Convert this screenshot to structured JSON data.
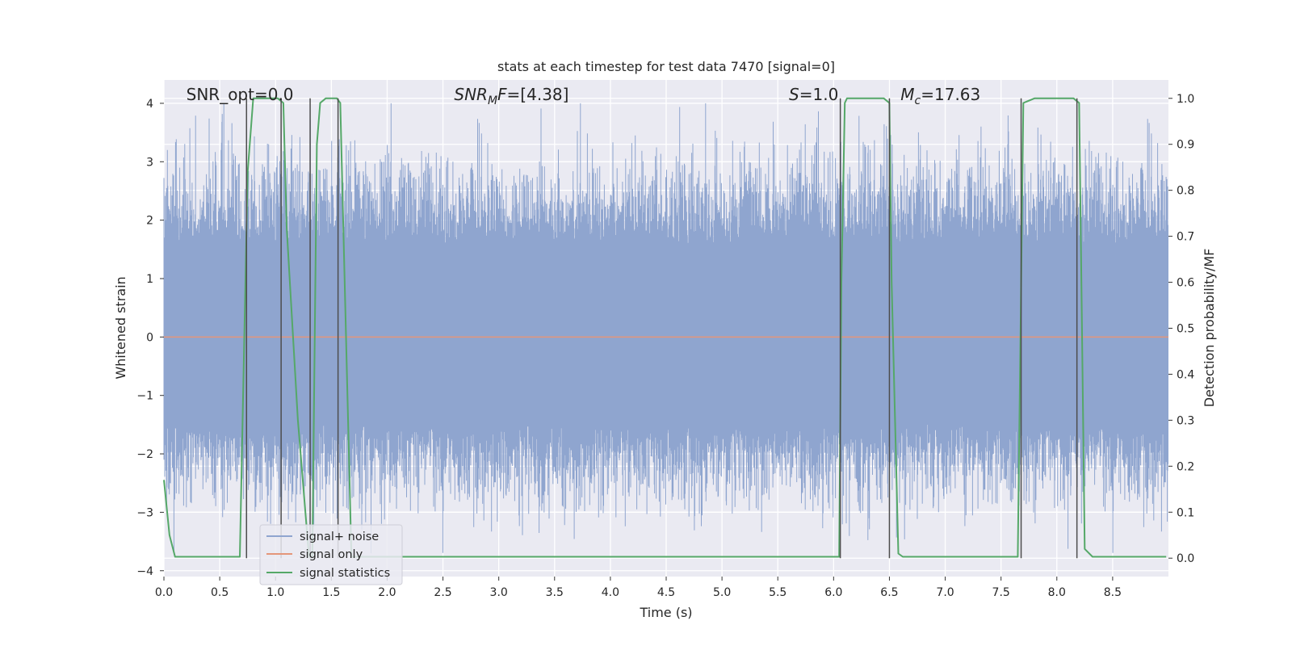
{
  "chart_data": {
    "type": "line",
    "title": "stats at each timestep for test data 7470 [signal=0]",
    "xlabel": "Time (s)",
    "ylabel": "Whitened strain",
    "y2label": "Detection probability/MF",
    "xlim": [
      0.0,
      9.0
    ],
    "ylim": [
      -4.1,
      4.4
    ],
    "y2lim": [
      -0.04,
      1.04
    ],
    "xticks": [
      "0.0",
      "0.5",
      "1.0",
      "1.5",
      "2.0",
      "2.5",
      "3.0",
      "3.5",
      "4.0",
      "4.5",
      "5.0",
      "5.5",
      "6.0",
      "6.5",
      "7.0",
      "7.5",
      "8.0",
      "8.5"
    ],
    "yticks": [
      "4",
      "3",
      "2",
      "1",
      "0",
      "−1",
      "−2",
      "−3",
      "−4"
    ],
    "y2ticks": [
      "1.0",
      "0.9",
      "0.8",
      "0.7",
      "0.6",
      "0.5",
      "0.4",
      "0.3",
      "0.2",
      "0.1",
      "0.0"
    ],
    "grid": true,
    "legend_position": "lower-left",
    "annotations": [
      {
        "parts": [
          {
            "text": "SNR_opt=0.0",
            "italic": false
          }
        ],
        "x": 0.2
      },
      {
        "parts": [
          {
            "text": "SNR",
            "italic": true
          },
          {
            "text": "M",
            "italic": true,
            "sub": true
          },
          {
            "text": "F",
            "italic": true
          },
          {
            "text": "=[4.38]",
            "italic": false
          }
        ],
        "x": 2.6
      },
      {
        "parts": [
          {
            "text": "S",
            "italic": true
          },
          {
            "text": "=1.0",
            "italic": false
          }
        ],
        "x": 5.6
      },
      {
        "parts": [
          {
            "text": "M",
            "italic": true
          },
          {
            "text": "c",
            "italic": true,
            "sub": true
          },
          {
            "text": "=17.63",
            "italic": false
          }
        ],
        "x": 6.6
      }
    ],
    "series": [
      {
        "name": "signal+ noise",
        "kind": "noise",
        "color": "#8fa5cf",
        "amplitude_typical": [
          -1.4,
          1.5
        ],
        "amplitude_extreme": [
          -3.7,
          4.0
        ]
      },
      {
        "name": "signal only",
        "kind": "line",
        "color": "#e4967a",
        "x": [
          0.0,
          9.0
        ],
        "y": [
          0.0,
          0.0
        ]
      },
      {
        "name": "signal statistics",
        "kind": "line",
        "axis": "right",
        "color": "#55a868",
        "x": [
          0.0,
          0.05,
          0.1,
          0.65,
          0.68,
          0.75,
          0.8,
          1.0,
          1.02,
          1.07,
          1.1,
          1.2,
          1.3,
          1.33,
          1.37,
          1.4,
          1.45,
          1.55,
          1.58,
          1.68,
          1.75,
          6.05,
          6.07,
          6.1,
          6.12,
          6.2,
          6.45,
          6.5,
          6.52,
          6.58,
          6.62,
          7.62,
          7.65,
          7.7,
          7.8,
          8.15,
          8.2,
          8.22,
          8.25,
          8.32,
          8.98
        ],
        "y": [
          0.17,
          0.05,
          0.003,
          0.003,
          0.003,
          0.84,
          1.0,
          1.0,
          1.0,
          0.99,
          0.72,
          0.3,
          0.003,
          0.003,
          0.9,
          0.99,
          1.0,
          1.0,
          0.99,
          0.003,
          0.003,
          0.003,
          0.6,
          0.99,
          1.0,
          1.0,
          1.0,
          0.99,
          0.6,
          0.01,
          0.003,
          0.003,
          0.003,
          0.99,
          1.0,
          1.0,
          0.99,
          0.6,
          0.02,
          0.003,
          0.003
        ]
      }
    ],
    "vertical_markers": {
      "color": "#4d4d4d",
      "x": [
        0.74,
        1.05,
        1.31,
        1.56,
        6.06,
        6.5,
        7.68,
        8.18
      ]
    }
  }
}
